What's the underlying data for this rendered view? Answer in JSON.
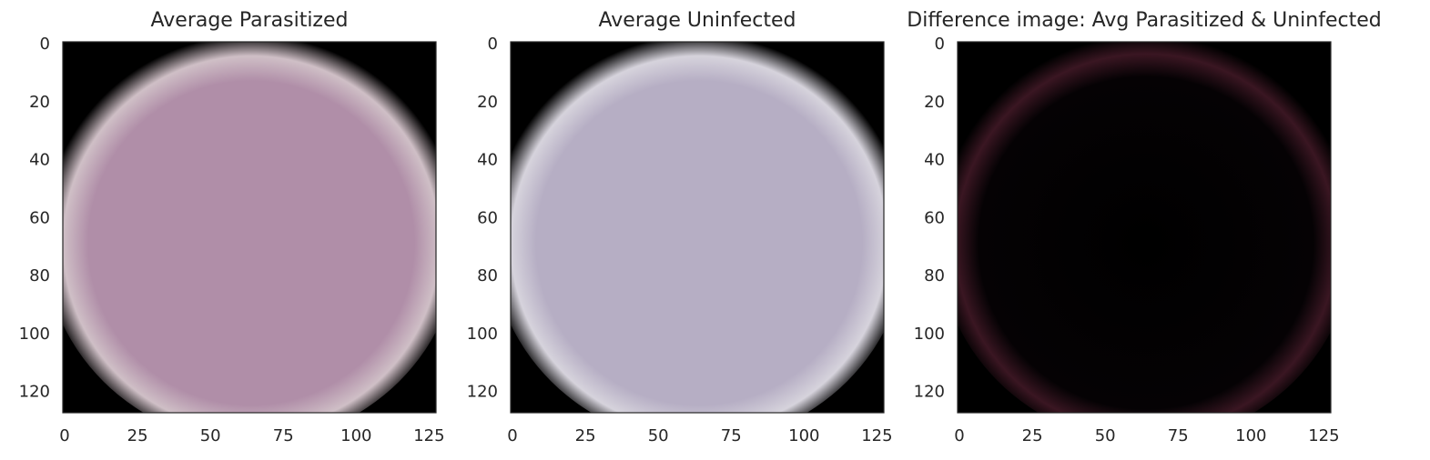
{
  "chart_data": [
    {
      "type": "heatmap",
      "title": "Average Parasitized",
      "xlim": [
        0,
        128
      ],
      "ylim": [
        128,
        0
      ],
      "xticks": [
        "0",
        "25",
        "50",
        "75",
        "100",
        "125"
      ],
      "yticks": [
        "0",
        "20",
        "40",
        "60",
        "80",
        "100",
        "120"
      ],
      "grid": false,
      "image": {
        "shape": "circular cell, dark background",
        "fill_color": "#b08ea8",
        "edge_color": "#cfbfc6",
        "background": "#000000"
      }
    },
    {
      "type": "heatmap",
      "title": "Average Uninfected",
      "xlim": [
        0,
        128
      ],
      "ylim": [
        128,
        0
      ],
      "xticks": [
        "0",
        "25",
        "50",
        "75",
        "100",
        "125"
      ],
      "yticks": [
        "0",
        "20",
        "40",
        "60",
        "80",
        "100",
        "120"
      ],
      "grid": false,
      "image": {
        "shape": "circular cell, dark background",
        "fill_color": "#b6aec4",
        "edge_color": "#d6d3dc",
        "background": "#000000"
      }
    },
    {
      "type": "heatmap",
      "title": "Difference image: Avg Parasitized & Uninfected",
      "xlim": [
        0,
        128
      ],
      "ylim": [
        128,
        0
      ],
      "xticks": [
        "0",
        "25",
        "50",
        "75",
        "100",
        "125"
      ],
      "yticks": [
        "0",
        "20",
        "40",
        "60",
        "80",
        "100",
        "120"
      ],
      "grid": false,
      "image": {
        "shape": "faint ring on black",
        "fill_color": "#000000",
        "edge_color": "#3a1622",
        "background": "#000000"
      }
    }
  ]
}
